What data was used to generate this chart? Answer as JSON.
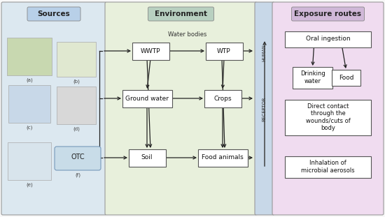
{
  "title_sources": "Sources",
  "title_environment": "Environment",
  "title_exposure": "Exposure routes",
  "bg_sources": "#dce8f0",
  "bg_environment": "#e8f0dc",
  "bg_separator": "#c8d8e8",
  "bg_exposure": "#f0dcf0",
  "water_bodies_label": "Water bodies",
  "receptor_label": "RECEPTOR",
  "human_label": "HUMAN",
  "otc_label": "OTC",
  "sources_labels": [
    "(a)",
    "(b)",
    "(c)",
    "(d)",
    "(e)",
    "(f)"
  ],
  "title_bg": "#b8d0e8",
  "title_bg_env": "#b8d0c0",
  "title_bg_exp": "#d0b8d8"
}
